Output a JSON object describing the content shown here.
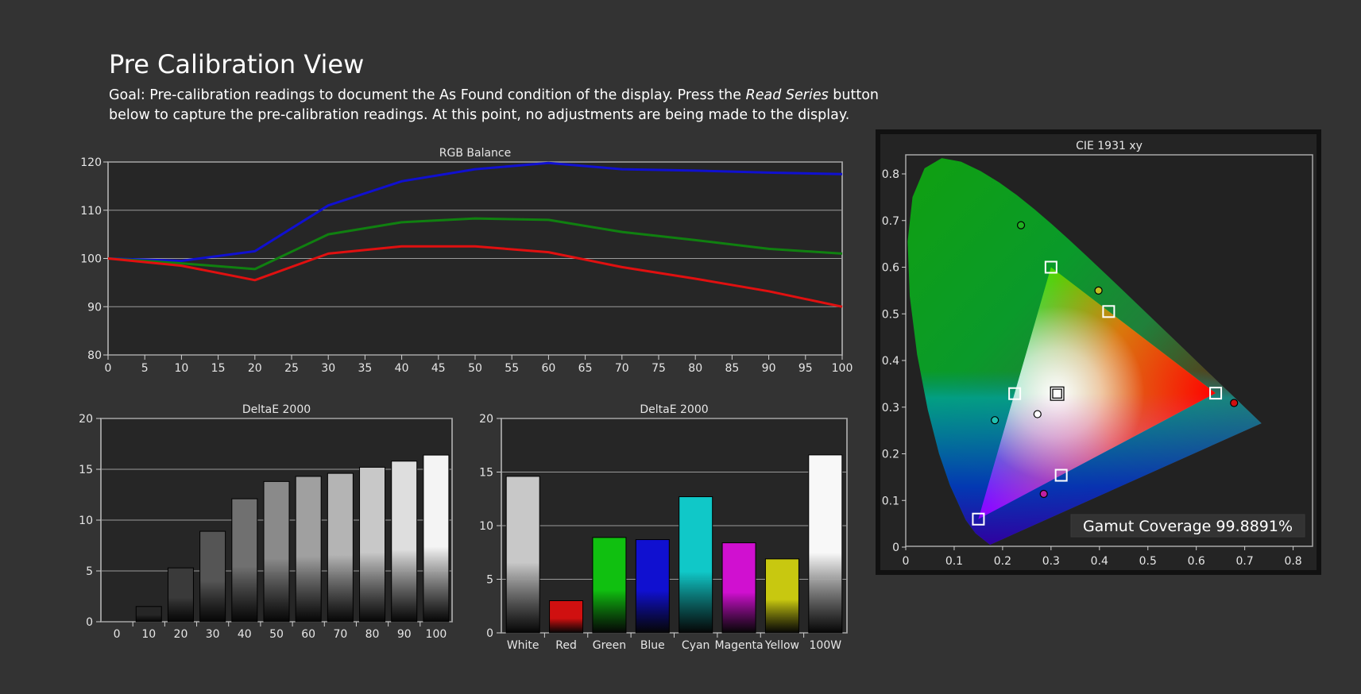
{
  "page": {
    "title": "Pre Calibration View",
    "goal_before": "Goal: Pre-calibration readings to document the As Found condition of the display. Press the ",
    "goal_emphasis": "Read Series",
    "goal_after": " button below to capture the pre-calibration readings. At this point, no adjustments are being made to the display."
  },
  "chart_data": [
    {
      "type": "line",
      "title": "RGB Balance",
      "x": [
        0,
        10,
        20,
        30,
        40,
        50,
        60,
        70,
        80,
        90,
        100
      ],
      "xticks": [
        0,
        5,
        10,
        15,
        20,
        25,
        30,
        35,
        40,
        45,
        50,
        55,
        60,
        65,
        70,
        75,
        80,
        85,
        90,
        95,
        100
      ],
      "xlim": [
        0,
        100
      ],
      "yticks": [
        80,
        90,
        100,
        110,
        120
      ],
      "ylim": [
        80,
        120
      ],
      "grid": true,
      "series": [
        {
          "color": "#1010d0",
          "values": [
            100,
            99.5,
            101.5,
            111,
            116,
            118.5,
            119.8,
            118.5,
            118.2,
            117.8,
            117.5
          ]
        },
        {
          "color": "#108010",
          "values": [
            100,
            99,
            97.8,
            105,
            107.5,
            108.3,
            108,
            105.5,
            103.8,
            102,
            101
          ]
        },
        {
          "color": "#e01010",
          "values": [
            100,
            98.5,
            95.5,
            101,
            102.5,
            102.5,
            101.3,
            98.2,
            95.8,
            93.2,
            90
          ]
        }
      ]
    },
    {
      "type": "bar",
      "title": "DeltaE 2000",
      "categories": [
        "0",
        "10",
        "20",
        "30",
        "40",
        "50",
        "60",
        "70",
        "80",
        "90",
        "100"
      ],
      "values": [
        0,
        1.5,
        5.3,
        8.9,
        12.1,
        13.8,
        14.3,
        14.6,
        15.2,
        15.8,
        16.4
      ],
      "yticks": [
        0,
        5,
        10,
        15,
        20
      ],
      "ylim": [
        0,
        20
      ],
      "grid": true,
      "colors": [
        "#000000",
        "#262626",
        "#3a3a3a",
        "#555555",
        "#707070",
        "#8a8a8a",
        "#a0a0a0",
        "#b4b4b4",
        "#c8c8c8",
        "#dedede",
        "#f4f4f4"
      ]
    },
    {
      "type": "bar",
      "title": "DeltaE 2000",
      "categories": [
        "White",
        "Red",
        "Green",
        "Blue",
        "Cyan",
        "Magenta",
        "Yellow",
        "100W"
      ],
      "values": [
        14.6,
        3.0,
        8.9,
        8.7,
        12.7,
        8.4,
        6.9,
        16.6
      ],
      "yticks": [
        0,
        5,
        10,
        15,
        20
      ],
      "ylim": [
        0,
        20
      ],
      "grid": true,
      "colors": [
        "#c8c8c8",
        "#d01010",
        "#10c010",
        "#1010d0",
        "#10c8c8",
        "#d010d0",
        "#c8c810",
        "#f8f8f8"
      ]
    },
    {
      "type": "scatter",
      "title": "CIE 1931 xy",
      "xticks": [
        0,
        0.1,
        0.2,
        0.3,
        0.4,
        0.5,
        0.6,
        0.7,
        0.8
      ],
      "yticks": [
        0,
        0.1,
        0.2,
        0.3,
        0.4,
        0.5,
        0.6,
        0.7,
        0.8
      ],
      "xlim": [
        0,
        0.84
      ],
      "ylim": [
        0,
        0.84
      ],
      "gamut_coverage_label": "Gamut Coverage 99.8891%",
      "targets": [
        {
          "name": "Red",
          "x": 0.64,
          "y": 0.33
        },
        {
          "name": "Green",
          "x": 0.3,
          "y": 0.6
        },
        {
          "name": "Blue",
          "x": 0.15,
          "y": 0.06
        },
        {
          "name": "Cyan",
          "x": 0.225,
          "y": 0.329
        },
        {
          "name": "Magenta",
          "x": 0.321,
          "y": 0.154
        },
        {
          "name": "Yellow",
          "x": 0.419,
          "y": 0.505
        },
        {
          "name": "White",
          "x": 0.3127,
          "y": 0.329
        }
      ],
      "measured": [
        {
          "name": "Red",
          "x": 0.678,
          "y": 0.309,
          "color": "#d01010"
        },
        {
          "name": "Green",
          "x": 0.238,
          "y": 0.69,
          "color": "#20b020"
        },
        {
          "name": "Cyan",
          "x": 0.184,
          "y": 0.272,
          "color": "#20c0b0"
        },
        {
          "name": "Magenta",
          "x": 0.285,
          "y": 0.114,
          "color": "#c020a0"
        },
        {
          "name": "Yellow",
          "x": 0.398,
          "y": 0.55,
          "color": "#c0c020"
        },
        {
          "name": "White",
          "x": 0.272,
          "y": 0.285,
          "color": "#ffffff"
        }
      ]
    }
  ]
}
